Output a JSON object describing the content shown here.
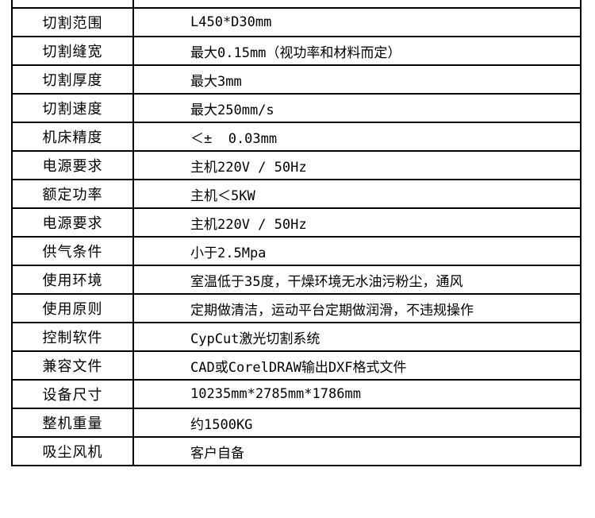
{
  "colors": {
    "background": "#ffffff",
    "grid_line": "#000000",
    "text": "#000000"
  },
  "table": {
    "rows": [
      {
        "label": "切割范围",
        "value": "L450*D30mm"
      },
      {
        "label": "切割缝宽",
        "value": "最大0.15mm（视功率和材料而定）"
      },
      {
        "label": "切割厚度",
        "value": "最大3mm"
      },
      {
        "label": "切割速度",
        "value": "最大250mm/s"
      },
      {
        "label": "机床精度",
        "value": "＜±  0.03mm"
      },
      {
        "label": "电源要求",
        "value": "主机220V / 50Hz"
      },
      {
        "label": "额定功率",
        "value": "主机＜5KW"
      },
      {
        "label": "电源要求",
        "value": "主机220V / 50Hz"
      },
      {
        "label": "供气条件",
        "value": "小于2.5Mpa"
      },
      {
        "label": "使用环境",
        "value": "室温低于35度，干燥环境无水油污粉尘，通风"
      },
      {
        "label": "使用原则",
        "value": "定期做清洁，运动平台定期做润滑，不违规操作"
      },
      {
        "label": "控制软件",
        "value": "CypCut激光切割系统"
      },
      {
        "label": "兼容文件",
        "value": "CAD或CorelDRAW输出DXF格式文件"
      },
      {
        "label": "设备尺寸",
        "value": "10235mm*2785mm*1786mm"
      },
      {
        "label": "整机重量",
        "value": "约1500KG"
      },
      {
        "label": "吸尘风机",
        "value": "客户自备"
      }
    ]
  }
}
